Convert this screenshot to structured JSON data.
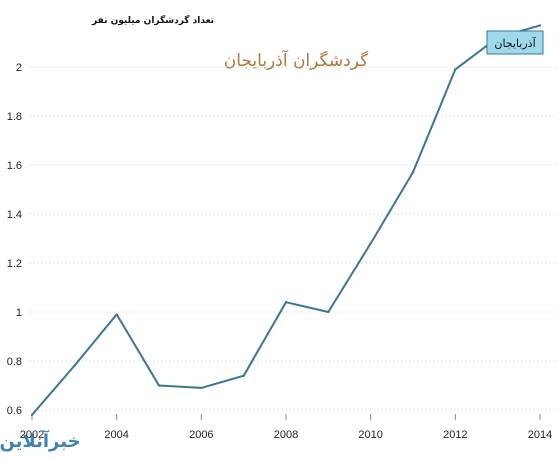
{
  "chart_data": {
    "type": "line",
    "title": "گردشگران آذربایجان",
    "ylabel": "تعداد گردشگران میلیون نفر",
    "xlabel": "",
    "x": [
      2002,
      2003,
      2004,
      2005,
      2006,
      2007,
      2008,
      2009,
      2010,
      2011,
      2012,
      2013,
      2014
    ],
    "x_tick_labels": [
      "2002",
      "2004",
      "2006",
      "2008",
      "2010",
      "2012",
      "2014"
    ],
    "x_tick_values": [
      2002,
      2004,
      2006,
      2008,
      2010,
      2012,
      2014
    ],
    "y_tick_labels": [
      "0.6",
      "0.8",
      "1",
      "1.2",
      "1.4",
      "1.6",
      "1.8",
      "2"
    ],
    "y_tick_values": [
      0.6,
      0.8,
      1.0,
      1.2,
      1.4,
      1.6,
      1.8,
      2.0
    ],
    "ylim": [
      0.6,
      2.2
    ],
    "xlim": [
      2002,
      2014
    ],
    "grid": "horizontal-dotted",
    "legend_position": "top-right",
    "series": [
      {
        "name": "آذربایجان",
        "color": "#3b7593",
        "values": [
          0.58,
          0.78,
          0.99,
          0.7,
          0.69,
          0.74,
          1.04,
          1.0,
          1.28,
          1.57,
          1.99,
          2.12,
          2.17
        ]
      }
    ],
    "colors": {
      "title": "#b5763a",
      "line": "#3b7593",
      "legend_bg": "#9fd9ec",
      "grid": "#cccccc"
    }
  },
  "watermark": {
    "text": "خبرآنلاین",
    "color": "#1f6ca4"
  }
}
